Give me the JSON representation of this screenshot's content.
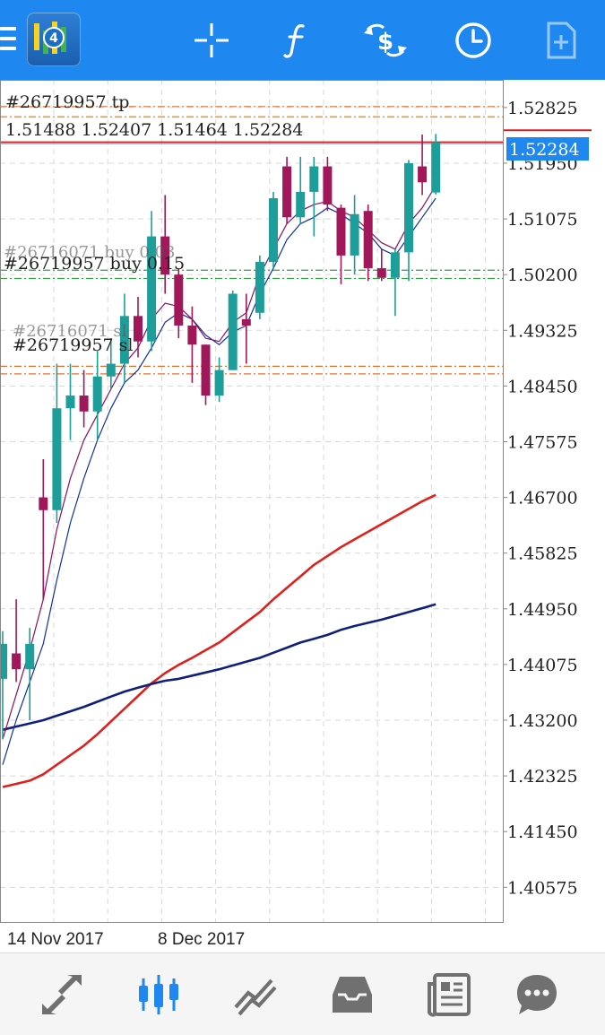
{
  "colors": {
    "topbar": "#1e88f0",
    "bull": "#1e9e9b",
    "bear": "#a0185a",
    "ma_red": "#e0201c",
    "ma_navy": "#10207a",
    "ma_thin_blue": "#1030a0",
    "ma_thin_purple": "#8a1060",
    "price_label_bg": "#1e88f0",
    "bottom_active": "#1e88f0",
    "bottom_inactive": "#707070"
  },
  "topbar": {
    "menu_icon": "hamburger-icon",
    "logo_badge": "4",
    "icons": [
      "crosshair-icon",
      "indicators-function-icon",
      "trade-icon",
      "clock-icon",
      "add-file-icon"
    ]
  },
  "chart": {
    "orders_header": "#26719957 tp",
    "ohlc_text": "1.51488 1.52407 1.51464 1.52284",
    "current_price": "1.52284",
    "order_labels": [
      "#26716071 buy 0.03",
      "#26719957 buy 0.15",
      "#26716071 sl",
      "#26719957 sl"
    ],
    "price_axis": [
      "1.52825",
      "1.51950",
      "1.51075",
      "1.50200",
      "1.49325",
      "1.48450",
      "1.47575",
      "1.46700",
      "1.45825",
      "1.44950",
      "1.44075",
      "1.43200",
      "1.42325",
      "1.41450",
      "1.40575"
    ],
    "date_labels": [
      "14 Nov 2017",
      "8 Dec 2017"
    ]
  },
  "chart_data": {
    "type": "candlestick",
    "title": "",
    "ylim": [
      1.4003,
      1.5326
    ],
    "ohlc": [
      [
        1.4385,
        1.446,
        1.429,
        1.444
      ],
      [
        1.4425,
        1.451,
        1.438,
        1.44
      ],
      [
        1.44,
        1.4465,
        1.432,
        1.444
      ],
      [
        1.467,
        1.473,
        1.451,
        1.465
      ],
      [
        1.465,
        1.488,
        1.463,
        1.481
      ],
      [
        1.481,
        1.488,
        1.476,
        1.483
      ],
      [
        1.483,
        1.487,
        1.478,
        1.4805
      ],
      [
        1.4805,
        1.49,
        1.476,
        1.486
      ],
      [
        1.486,
        1.492,
        1.484,
        1.488
      ],
      [
        1.488,
        1.499,
        1.485,
        1.4955
      ],
      [
        1.4955,
        1.4985,
        1.489,
        1.4915
      ],
      [
        1.4915,
        1.512,
        1.49,
        1.508
      ],
      [
        1.508,
        1.5145,
        1.499,
        1.502
      ],
      [
        1.502,
        1.503,
        1.492,
        1.494
      ],
      [
        1.494,
        1.497,
        1.485,
        1.491
      ],
      [
        1.491,
        1.491,
        1.4815,
        1.483
      ],
      [
        1.483,
        1.489,
        1.482,
        1.487
      ],
      [
        1.487,
        1.4995,
        1.487,
        1.499
      ],
      [
        1.495,
        1.499,
        1.488,
        1.494
      ],
      [
        1.496,
        1.505,
        1.495,
        1.504
      ],
      [
        1.504,
        1.515,
        1.503,
        1.514
      ],
      [
        1.519,
        1.5205,
        1.51,
        1.511
      ],
      [
        1.511,
        1.5205,
        1.51,
        1.515
      ],
      [
        1.515,
        1.5205,
        1.508,
        1.519
      ],
      [
        1.519,
        1.5205,
        1.512,
        1.513
      ],
      [
        1.5125,
        1.513,
        1.5005,
        1.505
      ],
      [
        1.505,
        1.5145,
        1.502,
        1.5115
      ],
      [
        1.512,
        1.513,
        1.501,
        1.503
      ],
      [
        1.503,
        1.506,
        1.501,
        1.5015
      ],
      [
        1.5015,
        1.506,
        1.4955,
        1.5055
      ],
      [
        1.5055,
        1.52,
        1.501,
        1.5195
      ],
      [
        1.519,
        1.524,
        1.5145,
        1.5165
      ],
      [
        1.5149,
        1.5241,
        1.5146,
        1.5228
      ]
    ],
    "ma_thin_blue": [
      1.425,
      1.432,
      1.438,
      1.444,
      1.454,
      1.463,
      1.47,
      1.476,
      1.481,
      1.485,
      1.487,
      1.4905,
      1.4945,
      1.496,
      1.495,
      1.4925,
      1.491,
      1.493,
      1.494,
      1.499,
      1.503,
      1.5075,
      1.51,
      1.511,
      1.5125,
      1.5115,
      1.51,
      1.5085,
      1.506,
      1.505,
      1.508,
      1.511,
      1.514
    ],
    "ma_thin_purple": [
      1.429,
      1.436,
      1.443,
      1.451,
      1.462,
      1.47,
      1.476,
      1.48,
      1.484,
      1.488,
      1.4905,
      1.495,
      1.4975,
      1.497,
      1.495,
      1.492,
      1.4915,
      1.4945,
      1.496,
      1.502,
      1.506,
      1.51,
      1.512,
      1.513,
      1.5135,
      1.512,
      1.511,
      1.509,
      1.507,
      1.506,
      1.51,
      1.5125,
      1.516
    ],
    "ma_red": [
      1.4215,
      1.422,
      1.4225,
      1.4235,
      1.425,
      1.4265,
      1.428,
      1.4298,
      1.4318,
      1.4338,
      1.4358,
      1.4378,
      1.4394,
      1.4407,
      1.4418,
      1.443,
      1.4442,
      1.4458,
      1.4474,
      1.449,
      1.451,
      1.4528,
      1.4546,
      1.4564,
      1.4578,
      1.4592,
      1.4604,
      1.4616,
      1.4628,
      1.464,
      1.4652,
      1.4664,
      1.4674
    ],
    "ma_navy": [
      1.4305,
      1.431,
      1.4315,
      1.432,
      1.4327,
      1.4334,
      1.4341,
      1.4349,
      1.4357,
      1.4365,
      1.4371,
      1.4377,
      1.4382,
      1.4385,
      1.439,
      1.4395,
      1.44,
      1.4406,
      1.4412,
      1.4418,
      1.4426,
      1.4434,
      1.4442,
      1.4448,
      1.4454,
      1.4462,
      1.4468,
      1.4473,
      1.4478,
      1.4484,
      1.449,
      1.4496,
      1.4502
    ],
    "levels": [
      {
        "name": "#26719957 tp",
        "price": 1.5284,
        "color": "#e07030"
      },
      {
        "name": "tp-2",
        "price": 1.5268,
        "color": "#e07030"
      },
      {
        "name": "bid",
        "price": 1.52284,
        "color": "#d02020"
      },
      {
        "name": "ask",
        "price": 1.5226,
        "color": "#6090d0"
      },
      {
        "name": "#26719957 buy 0.15",
        "price": 1.5027,
        "color": "#30a040"
      },
      {
        "name": "#26716071 buy 0.03",
        "price": 1.5014,
        "color": "#30a040"
      },
      {
        "name": "#26716071 sl",
        "price": 1.4876,
        "color": "#e07030"
      },
      {
        "name": "#26719957 sl",
        "price": 1.4864,
        "color": "#e07030"
      }
    ]
  },
  "bottombar": {
    "items": [
      {
        "icon": "quotes-arrows-icon",
        "active": false
      },
      {
        "icon": "chart-candles-icon",
        "active": true
      },
      {
        "icon": "trade-line-icon",
        "active": false
      },
      {
        "icon": "history-inbox-icon",
        "active": false
      },
      {
        "icon": "news-icon",
        "active": false
      },
      {
        "icon": "chat-icon",
        "active": false
      }
    ]
  }
}
